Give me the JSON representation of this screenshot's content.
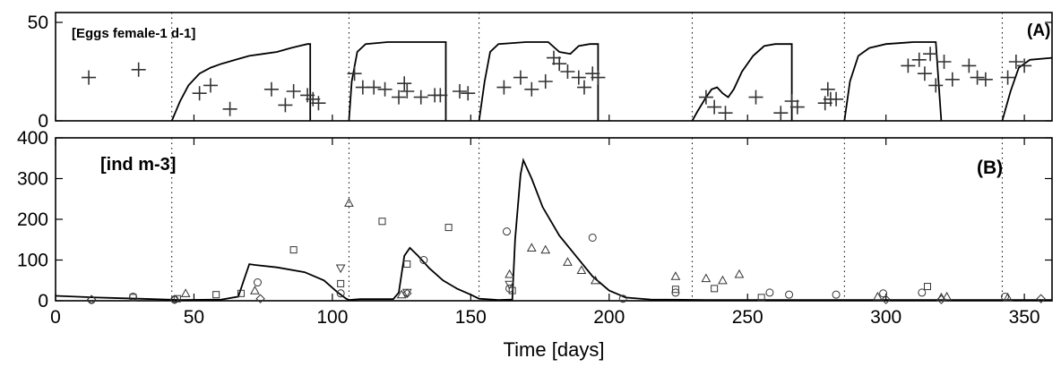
{
  "chart_data": [
    {
      "panel": "A",
      "type": "line",
      "panel_label": "(A)",
      "annotation": "[Eggs female-1 d-1]",
      "xlim": [
        0,
        360
      ],
      "ylim": [
        0,
        55
      ],
      "y_ticks": [
        0,
        50
      ],
      "x_tick_labels": [],
      "guide_lines_x": [
        42,
        106,
        153,
        230,
        285,
        342
      ],
      "series": [
        {
          "kind": "model-line",
          "segments": [
            [
              [
                42,
                0
              ],
              [
                45,
                10
              ],
              [
                48,
                18
              ],
              [
                52,
                24
              ],
              [
                56,
                27
              ],
              [
                60,
                29
              ],
              [
                65,
                31
              ],
              [
                70,
                33
              ],
              [
                75,
                34
              ],
              [
                80,
                35
              ],
              [
                85,
                37
              ],
              [
                88,
                38
              ],
              [
                91,
                39
              ],
              [
                92,
                39
              ],
              [
                92,
                0
              ]
            ],
            [
              [
                106,
                0
              ],
              [
                107,
                20
              ],
              [
                109,
                35
              ],
              [
                112,
                39
              ],
              [
                120,
                40
              ],
              [
                130,
                40
              ],
              [
                140,
                40
              ],
              [
                141,
                40
              ],
              [
                141,
                0
              ]
            ],
            [
              [
                153,
                0
              ],
              [
                155,
                20
              ],
              [
                157,
                35
              ],
              [
                160,
                39
              ],
              [
                170,
                40
              ],
              [
                178,
                40
              ],
              [
                182,
                35
              ],
              [
                186,
                34
              ],
              [
                189,
                38
              ],
              [
                193,
                39
              ],
              [
                196,
                39
              ],
              [
                196,
                0
              ]
            ],
            [
              [
                230,
                0
              ],
              [
                232,
                5
              ],
              [
                235,
                12
              ],
              [
                237,
                16
              ],
              [
                239,
                17
              ],
              [
                241,
                14
              ],
              [
                243,
                12
              ],
              [
                245,
                16
              ],
              [
                248,
                25
              ],
              [
                252,
                33
              ],
              [
                256,
                38
              ],
              [
                260,
                39
              ],
              [
                266,
                39
              ],
              [
                266,
                0
              ]
            ],
            [
              [
                285,
                0
              ],
              [
                287,
                20
              ],
              [
                290,
                33
              ],
              [
                294,
                37
              ],
              [
                300,
                39
              ],
              [
                310,
                40
              ],
              [
                318,
                40
              ],
              [
                320,
                0
              ]
            ],
            [
              [
                342,
                0
              ],
              [
                345,
                15
              ],
              [
                348,
                27
              ],
              [
                352,
                31
              ],
              [
                360,
                32
              ]
            ]
          ]
        },
        {
          "kind": "observed-plus",
          "x": [
            12,
            30,
            52,
            56,
            63,
            78,
            83,
            86,
            91,
            93,
            95,
            108,
            111,
            115,
            119,
            124,
            126,
            127,
            132,
            137,
            139,
            146,
            149,
            162,
            168,
            172,
            177,
            180,
            182,
            185,
            189,
            191,
            194,
            196,
            235,
            238,
            242,
            253,
            262,
            266,
            268,
            278,
            279,
            280,
            282,
            308,
            312,
            314,
            316,
            318,
            321,
            324,
            330,
            333,
            336,
            344,
            347,
            350
          ],
          "y": [
            22,
            26,
            14,
            18,
            6,
            16,
            8,
            15,
            13,
            11,
            9,
            24,
            17,
            17,
            16,
            12,
            19,
            15,
            12,
            13,
            13,
            15,
            14,
            17,
            22,
            16,
            20,
            32,
            29,
            25,
            22,
            17,
            24,
            22,
            12,
            7,
            4,
            12,
            4,
            10,
            7,
            9,
            16,
            11,
            11,
            28,
            31,
            24,
            34,
            18,
            30,
            21,
            28,
            22,
            21,
            22,
            30,
            28
          ]
        }
      ]
    },
    {
      "panel": "B",
      "type": "line",
      "panel_label": "(B)",
      "annotation": "[ind m-3]",
      "xlabel": "Time [days]",
      "xlim": [
        0,
        360
      ],
      "ylim": [
        0,
        400
      ],
      "x_ticks": [
        0,
        50,
        100,
        150,
        200,
        250,
        300,
        350
      ],
      "y_ticks": [
        0,
        100,
        200,
        300,
        400
      ],
      "guide_lines_x": [
        42,
        106,
        153,
        230,
        285,
        342
      ],
      "series": [
        {
          "kind": "model-line",
          "points": [
            [
              0,
              12
            ],
            [
              15,
              8
            ],
            [
              30,
              5
            ],
            [
              45,
              2
            ],
            [
              60,
              3
            ],
            [
              66,
              10
            ],
            [
              68,
              50
            ],
            [
              70,
              90
            ],
            [
              72,
              88
            ],
            [
              80,
              82
            ],
            [
              90,
              70
            ],
            [
              97,
              50
            ],
            [
              102,
              20
            ],
            [
              105,
              5
            ],
            [
              106,
              2
            ],
            [
              110,
              4
            ],
            [
              122,
              4
            ],
            [
              124,
              20
            ],
            [
              126,
              110
            ],
            [
              128,
              130
            ],
            [
              131,
              110
            ],
            [
              135,
              80
            ],
            [
              140,
              50
            ],
            [
              145,
              30
            ],
            [
              150,
              15
            ],
            [
              153,
              5
            ],
            [
              160,
              2
            ],
            [
              165,
              3
            ],
            [
              166,
              150
            ],
            [
              168,
              310
            ],
            [
              169,
              345
            ],
            [
              172,
              300
            ],
            [
              176,
              230
            ],
            [
              182,
              160
            ],
            [
              188,
              110
            ],
            [
              194,
              60
            ],
            [
              200,
              25
            ],
            [
              206,
              8
            ],
            [
              215,
              3
            ],
            [
              235,
              2
            ],
            [
              270,
              2
            ],
            [
              300,
              2
            ],
            [
              330,
              2
            ],
            [
              360,
              2
            ]
          ]
        },
        {
          "kind": "triangle-up",
          "x": [
            47,
            72,
            106,
            125,
            164,
            172,
            177,
            185,
            190,
            195,
            224,
            235,
            241,
            247,
            297,
            320,
            322,
            344
          ],
          "y": [
            18,
            25,
            240,
            15,
            65,
            130,
            125,
            95,
            75,
            50,
            60,
            55,
            50,
            65,
            10,
            8,
            10,
            8
          ]
        },
        {
          "kind": "triangle-down",
          "x": [
            103,
            127,
            164
          ],
          "y": [
            80,
            20,
            40
          ]
        },
        {
          "kind": "square",
          "x": [
            28,
            44,
            58,
            67,
            86,
            103,
            118,
            127,
            142,
            165,
            224,
            238,
            255,
            315
          ],
          "y": [
            8,
            5,
            15,
            18,
            125,
            42,
            195,
            90,
            180,
            25,
            28,
            30,
            8,
            35
          ]
        },
        {
          "kind": "circle",
          "x": [
            13,
            28,
            43,
            73,
            103,
            133,
            163,
            164,
            194,
            205,
            224,
            258,
            265,
            282,
            299,
            313,
            343
          ],
          "y": [
            2,
            10,
            3,
            45,
            18,
            100,
            170,
            30,
            155,
            5,
            20,
            20,
            15,
            15,
            18,
            20,
            10
          ]
        },
        {
          "kind": "diamond",
          "x": [
            13,
            43,
            74,
            127,
            300,
            320,
            356
          ],
          "y": [
            3,
            3,
            5,
            18,
            3,
            3,
            5
          ]
        }
      ]
    }
  ]
}
